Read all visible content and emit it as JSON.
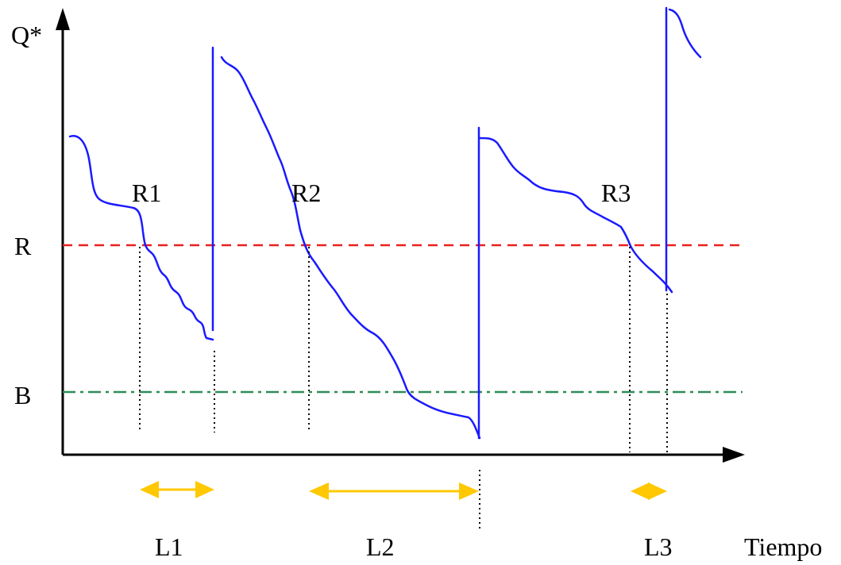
{
  "labels": {
    "y_axis": "Q*",
    "x_axis": "Tiempo",
    "reorder_level": "R",
    "safety_level": "B",
    "reorder_points": [
      "R1",
      "R2",
      "R3"
    ],
    "lead_times": [
      "L1",
      "L2",
      "L3"
    ]
  },
  "colors": {
    "inventory_curve": "#1a1aff",
    "reorder_line": "#e8201e",
    "safety_line": "#2e8b57",
    "lead_time_arrow": "#ffc800",
    "axes": "#000000"
  }
}
